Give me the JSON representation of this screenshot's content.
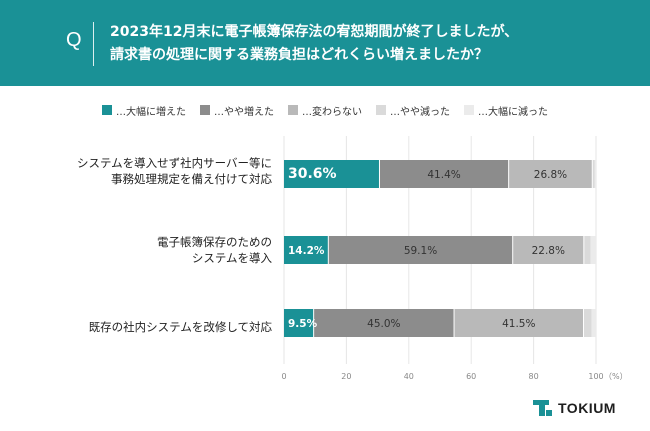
{
  "header": {
    "q_letter": "Q",
    "question_line1": "2023年12月末に電子帳簿保存法の宥恕期間が終了しましたが、",
    "question_line2": "請求書の処理に関する業務負担はどれくらい増えましたか？"
  },
  "colors": {
    "header_bg": "#1a9196",
    "series": [
      "#1a9196",
      "#8c8c8c",
      "#b9b9b9",
      "#dadada",
      "#ebebeb"
    ]
  },
  "chart_data": {
    "type": "bar",
    "orientation": "horizontal-stacked",
    "xlim": [
      0,
      100
    ],
    "xticks": [
      "0",
      "20",
      "40",
      "60",
      "80",
      "100"
    ],
    "xunit": "（%）",
    "legend_position": "top",
    "series": [
      {
        "name": "…大幅に増えた",
        "values": [
          30.6,
          14.2,
          9.5
        ]
      },
      {
        "name": "…やや増えた",
        "values": [
          41.4,
          59.1,
          45.0
        ]
      },
      {
        "name": "…変わらない",
        "values": [
          26.8,
          22.8,
          41.5
        ]
      },
      {
        "name": "…やや減った",
        "values": [
          0.8,
          2.2,
          2.6
        ]
      },
      {
        "name": "…大幅に減った",
        "values": [
          0.4,
          1.7,
          1.4
        ]
      }
    ],
    "categories": [
      {
        "lines": [
          "システムを導入せず社内サーバー等に",
          "事務処理規定を備え付けて対応"
        ]
      },
      {
        "lines": [
          "電子帳簿保存のための",
          "システムを導入"
        ]
      },
      {
        "lines": [
          "既存の社内システムを改修して対応"
        ]
      }
    ],
    "labels": [
      [
        "30.6%",
        "41.4%",
        "26.8%"
      ],
      [
        "14.2%",
        "59.1%",
        "22.8%"
      ],
      [
        "9.5%",
        "45.0%",
        "41.5%"
      ]
    ]
  },
  "brand": {
    "name": "TOKIUM"
  }
}
